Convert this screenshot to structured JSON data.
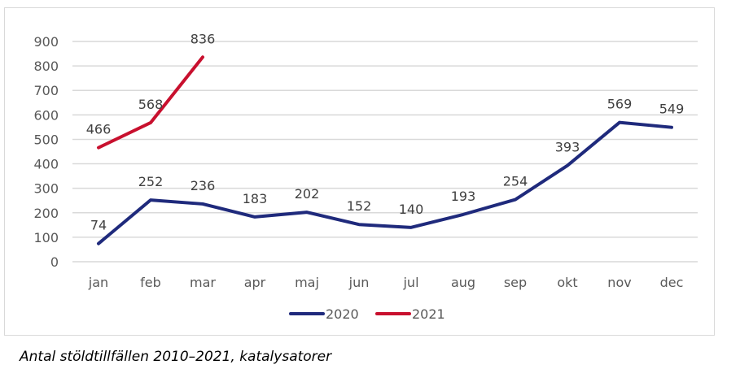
{
  "caption": "Antal stöldtillfällen 2010–2021, katalysatorer",
  "chart_data": {
    "type": "line",
    "title": "",
    "xlabel": "",
    "ylabel": "",
    "categories": [
      "jan",
      "feb",
      "mar",
      "apr",
      "maj",
      "jun",
      "jul",
      "aug",
      "sep",
      "okt",
      "nov",
      "dec"
    ],
    "series": [
      {
        "name": "2020",
        "color": "#1f2a7c",
        "values": [
          74,
          252,
          236,
          183,
          202,
          152,
          140,
          193,
          254,
          393,
          569,
          549
        ]
      },
      {
        "name": "2021",
        "color": "#c8102e",
        "values": [
          466,
          568,
          836
        ]
      }
    ],
    "ylim": [
      0,
      900
    ],
    "yticks": [
      0,
      100,
      200,
      300,
      400,
      500,
      600,
      700,
      800,
      900
    ],
    "grid": true,
    "legend_position": "bottom",
    "data_labels": true
  }
}
